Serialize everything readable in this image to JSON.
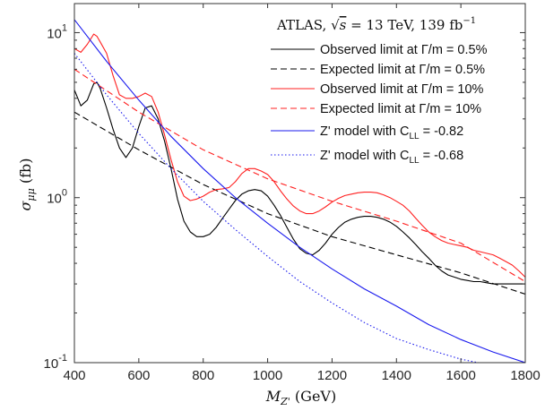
{
  "chart_data": {
    "type": "line",
    "title": "",
    "xlabel": "M_{Z'} (GeV)",
    "xlabel_main": "M",
    "xlabel_sub": "Z'",
    "xlabel_units": "(GeV)",
    "ylabel": "σ_{μμ} (fb)",
    "ylabel_main": "σ",
    "ylabel_sub": "μμ",
    "ylabel_units": "(fb)",
    "xlim": [
      400,
      1800
    ],
    "ylim": [
      0.1,
      15
    ],
    "yscale": "log",
    "grid": false,
    "legend_placement": "top-right",
    "legend_header": {
      "experiment": "ATLAS,",
      "sqrt": "√",
      "s_var": "s",
      "energy": "= 13 TeV, 139 fb",
      "lumi_exp": "−1"
    },
    "x_ticks": [
      "400",
      "600",
      "800",
      "1000",
      "1200",
      "1400",
      "1600",
      "1800"
    ],
    "y_ticks": [
      {
        "base": "10",
        "exp": "-1",
        "value": 0.1
      },
      {
        "base": "10",
        "exp": "0",
        "value": 1
      },
      {
        "base": "10",
        "exp": "1",
        "value": 10
      }
    ],
    "series": [
      {
        "name": "Observed limit at Γ/m = 0.5%",
        "legend_sub": "",
        "color": "#000000",
        "dash": "solid",
        "x": [
          400,
          420,
          440,
          460,
          470,
          480,
          500,
          520,
          540,
          560,
          580,
          600,
          620,
          640,
          660,
          680,
          700,
          720,
          740,
          760,
          780,
          800,
          820,
          840,
          860,
          880,
          900,
          920,
          940,
          960,
          980,
          1000,
          1020,
          1040,
          1060,
          1080,
          1100,
          1120,
          1140,
          1160,
          1180,
          1200,
          1220,
          1240,
          1260,
          1280,
          1300,
          1320,
          1340,
          1360,
          1380,
          1400,
          1420,
          1440,
          1460,
          1480,
          1500,
          1520,
          1540,
          1560,
          1580,
          1600,
          1620,
          1640,
          1660,
          1680,
          1700,
          1720,
          1740,
          1760,
          1780,
          1800
        ],
        "y": [
          4.5,
          3.6,
          3.9,
          4.9,
          5.0,
          4.6,
          3.5,
          2.6,
          2.0,
          1.75,
          2.0,
          2.7,
          3.5,
          3.6,
          3.0,
          2.2,
          1.5,
          0.98,
          0.72,
          0.62,
          0.58,
          0.58,
          0.6,
          0.66,
          0.75,
          0.85,
          0.96,
          1.05,
          1.1,
          1.12,
          1.1,
          1.02,
          0.9,
          0.78,
          0.66,
          0.56,
          0.49,
          0.46,
          0.45,
          0.48,
          0.53,
          0.6,
          0.66,
          0.71,
          0.74,
          0.76,
          0.77,
          0.77,
          0.76,
          0.74,
          0.71,
          0.67,
          0.62,
          0.57,
          0.52,
          0.47,
          0.43,
          0.39,
          0.36,
          0.34,
          0.33,
          0.32,
          0.315,
          0.31,
          0.31,
          0.305,
          0.3,
          0.3,
          0.3,
          0.3,
          0.3,
          0.3
        ]
      },
      {
        "name": "Expected limit  at Γ/m = 0.5%",
        "legend_sub": "",
        "color": "#000000",
        "dash": "dashed",
        "x": [
          400,
          600,
          800,
          1000,
          1200,
          1400,
          1600,
          1800
        ],
        "y": [
          3.3,
          1.95,
          1.2,
          0.8,
          0.58,
          0.45,
          0.35,
          0.26
        ]
      },
      {
        "name": "Observed limit at Γ/m = 10%",
        "legend_sub": "",
        "color": "#ff2020",
        "dash": "solid",
        "x": [
          400,
          420,
          440,
          460,
          470,
          480,
          500,
          520,
          540,
          560,
          580,
          600,
          620,
          640,
          660,
          680,
          700,
          720,
          740,
          760,
          780,
          800,
          820,
          840,
          860,
          880,
          900,
          920,
          940,
          960,
          980,
          1000,
          1020,
          1040,
          1060,
          1080,
          1100,
          1120,
          1140,
          1160,
          1180,
          1200,
          1220,
          1240,
          1260,
          1280,
          1300,
          1320,
          1340,
          1360,
          1380,
          1400,
          1420,
          1440,
          1460,
          1480,
          1500,
          1520,
          1540,
          1560,
          1580,
          1600,
          1620,
          1640,
          1660,
          1680,
          1700,
          1720,
          1740,
          1760,
          1780,
          1800
        ],
        "y": [
          8.0,
          7.6,
          8.5,
          9.8,
          9.5,
          8.8,
          7.5,
          5.5,
          4.2,
          4.0,
          4.0,
          4.1,
          4.3,
          4.1,
          3.3,
          2.4,
          1.7,
          1.25,
          1.02,
          0.96,
          0.98,
          1.02,
          1.08,
          1.12,
          1.13,
          1.15,
          1.25,
          1.4,
          1.5,
          1.5,
          1.45,
          1.38,
          1.25,
          1.1,
          0.98,
          0.89,
          0.83,
          0.8,
          0.8,
          0.83,
          0.88,
          0.94,
          0.99,
          1.03,
          1.05,
          1.07,
          1.08,
          1.08,
          1.07,
          1.04,
          1.0,
          0.95,
          0.9,
          0.83,
          0.75,
          0.68,
          0.62,
          0.58,
          0.55,
          0.53,
          0.52,
          0.51,
          0.5,
          0.48,
          0.47,
          0.46,
          0.45,
          0.43,
          0.41,
          0.39,
          0.36,
          0.33
        ]
      },
      {
        "name": "Expected limit  at Γ/m = 10%",
        "legend_sub": "",
        "color": "#ff2020",
        "dash": "dashed",
        "x": [
          400,
          600,
          800,
          1000,
          1200,
          1400,
          1600,
          1800
        ],
        "y": [
          6.0,
          3.3,
          1.95,
          1.3,
          0.95,
          0.72,
          0.53,
          0.31
        ]
      },
      {
        "name": "Z' model with C",
        "legend_sub": "LL",
        "legend_tail": " = -0.82",
        "color": "#1a1aee",
        "dash": "solid",
        "x": [
          400,
          500,
          600,
          700,
          800,
          900,
          1000,
          1100,
          1200,
          1300,
          1400,
          1500,
          1600,
          1700,
          1800
        ],
        "y": [
          12.0,
          6.7,
          3.9,
          2.35,
          1.5,
          1.0,
          0.7,
          0.5,
          0.37,
          0.28,
          0.22,
          0.17,
          0.138,
          0.116,
          0.1
        ]
      },
      {
        "name": "Z' model with C",
        "legend_sub": "LL",
        "legend_tail": " = -0.68",
        "color": "#1a1aee",
        "dash": "dotted",
        "x": [
          400,
          500,
          600,
          700,
          800,
          900,
          1000,
          1100,
          1200,
          1300,
          1400,
          1500,
          1600,
          1700
        ],
        "y": [
          7.5,
          4.2,
          2.45,
          1.5,
          0.95,
          0.64,
          0.44,
          0.31,
          0.23,
          0.175,
          0.14,
          0.12,
          0.105,
          0.096
        ]
      }
    ]
  }
}
